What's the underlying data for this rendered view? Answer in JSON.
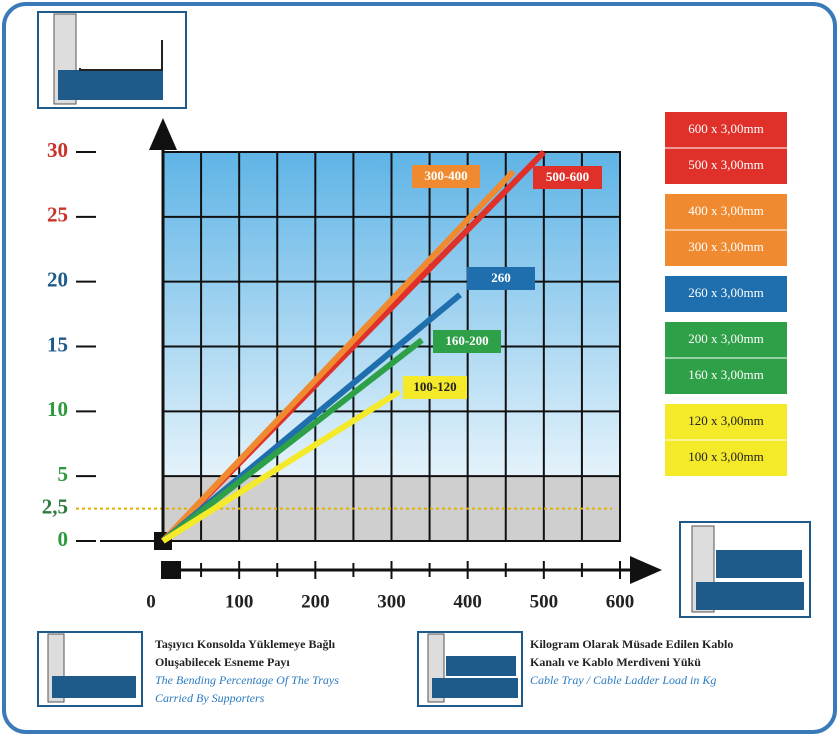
{
  "chart_data": {
    "type": "line",
    "xlim": [
      0,
      600
    ],
    "ylim": [
      0,
      30
    ],
    "xticks": [
      0,
      100,
      200,
      300,
      400,
      500,
      600
    ],
    "xminor": [
      50,
      150,
      250,
      350,
      450,
      550
    ],
    "yticks": [
      0,
      {
        "value": 2.5,
        "label": "2,5"
      },
      5,
      10,
      15,
      20,
      25,
      30
    ],
    "ytick_colors": [
      "#2e9a3e",
      "#2e7a3e",
      "#2e9a3e",
      "#2e9a3e",
      "#1e5a8a",
      "#1e5a8a",
      "#c8322a",
      "#c8322a"
    ],
    "grid": true,
    "shaded_range": [
      0,
      5
    ],
    "reference_line": {
      "y": 2.5,
      "color": "#e0b000"
    },
    "series": [
      {
        "name": "500-600",
        "color": "#e0302a",
        "x": [
          0,
          500
        ],
        "values": [
          0,
          30
        ]
      },
      {
        "name": "300-400",
        "color": "#f08a30",
        "x": [
          0,
          460
        ],
        "values": [
          0,
          28.5
        ]
      },
      {
        "name": "260",
        "color": "#1f6fae",
        "x": [
          0,
          390
        ],
        "values": [
          0,
          19
        ]
      },
      {
        "name": "160-200",
        "color": "#2ea048",
        "x": [
          0,
          340
        ],
        "values": [
          0,
          15.5
        ]
      },
      {
        "name": "100-120",
        "color": "#f4ea2a",
        "x": [
          0,
          310
        ],
        "values": [
          0,
          11.5
        ]
      }
    ],
    "legend_groups": [
      {
        "color": "#e0302a",
        "items": [
          "600 x 3,00mm",
          "500 x 3,00mm"
        ]
      },
      {
        "color": "#f08a30",
        "items": [
          "400 x 3,00mm",
          "300 x 3,00mm"
        ]
      },
      {
        "color": "#1f6fae",
        "items": [
          "260 x 3,00mm"
        ]
      },
      {
        "color": "#2ea048",
        "items": [
          "200 x 3,00mm",
          "160 x 3,00mm"
        ]
      },
      {
        "color": "#f4ea2a",
        "items": [
          "120 x 3,00mm",
          "100 x 3,00mm"
        ]
      }
    ],
    "captions": [
      {
        "lines": [
          "Taşıyıcı Konsolda Yüklemeye Bağlı",
          "Oluşabilecek Esneme Payı"
        ],
        "english": [
          "The Bending Percentage Of The Trays",
          "Carried By Supporters"
        ]
      },
      {
        "lines": [
          "Kilogram Olarak Müsade Edilen Kablo",
          "Kanalı ve Kablo Merdiveni Yükü"
        ],
        "english": [
          "Cable Tray / Cable Ladder Load in Kg"
        ]
      }
    ]
  }
}
